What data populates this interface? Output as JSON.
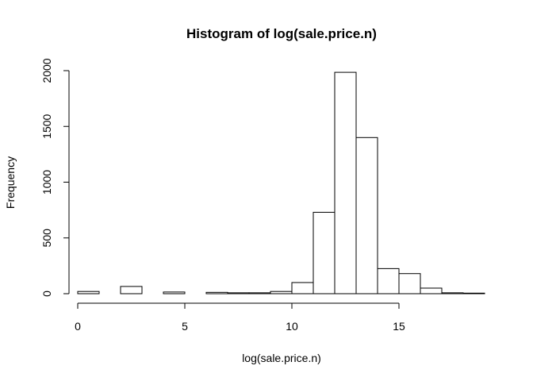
{
  "chart_data": {
    "type": "bar",
    "title": "Histogram of log(sale.price.n)",
    "xlabel": "log(sale.price.n)",
    "ylabel": "Frequency",
    "bin_edges": [
      0,
      1,
      2,
      3,
      4,
      5,
      6,
      7,
      8,
      9,
      10,
      11,
      12,
      13,
      14,
      15,
      16,
      17,
      18,
      19
    ],
    "values": [
      20,
      0,
      65,
      0,
      15,
      0,
      12,
      8,
      8,
      20,
      100,
      730,
      1985,
      1400,
      225,
      180,
      50,
      8,
      5
    ],
    "xlim": [
      0,
      19
    ],
    "ylim": [
      0,
      2000
    ],
    "x_ticks": [
      0,
      5,
      10,
      15
    ],
    "y_ticks": [
      0,
      500,
      1000,
      1500,
      2000
    ],
    "grid": false
  }
}
